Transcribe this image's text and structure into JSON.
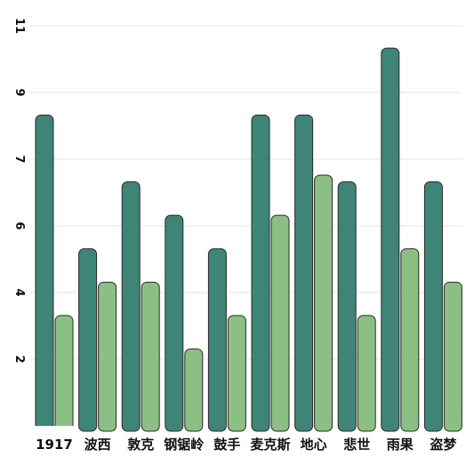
{
  "chart_data": {
    "type": "bar",
    "categories": [
      "1917",
      "波西",
      "敦克",
      "钢锯岭",
      "鼓手",
      "麦克斯",
      "地心",
      "悲世",
      "雨果",
      "盗梦"
    ],
    "series": [
      {
        "values": [
          9.3,
          5.3,
          7.3,
          6.3,
          5.3,
          9.3,
          9.3,
          7.3,
          11.3,
          7.3
        ],
        "color": "#3e8577"
      },
      {
        "values": [
          3.3,
          4.3,
          4.3,
          2.3,
          3.3,
          6.3,
          7.5,
          3.3,
          5.3,
          4.3
        ],
        "color": "#8bbf84"
      }
    ],
    "yticks": [
      "2",
      "4",
      "6",
      "7",
      "9",
      "11"
    ],
    "ylim": [
      0,
      12
    ],
    "grid": true,
    "xlabel": "",
    "ylabel": ""
  }
}
